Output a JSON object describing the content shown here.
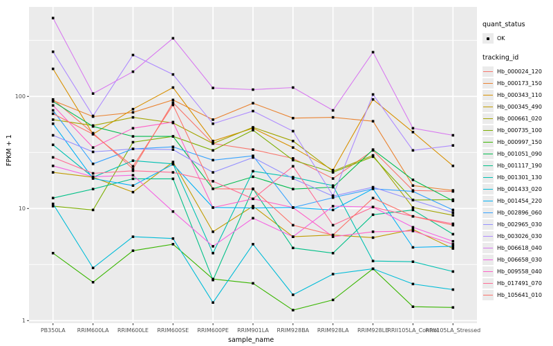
{
  "chart_data": {
    "type": "line",
    "title": "",
    "xlabel": "sample_name",
    "ylabel": "FPKM + 1",
    "y_scale": "log10",
    "y_ticks": [
      1,
      10,
      100
    ],
    "y_minor": [
      3.162,
      31.62,
      316.2
    ],
    "ylim": [
      1,
      630
    ],
    "grid": "on",
    "panel_color": "#ebebeb",
    "grid_color": "#ffffff",
    "tick_text_color": "#4d4d4d",
    "point_color": "#000000",
    "legend_position": "right",
    "legend": {
      "quant_title": "quant_status",
      "quant_value": "OK",
      "tracking_title": "tracking_id"
    },
    "categories": [
      "PB350LA",
      "RRIM600LA",
      "RRIM600LE",
      "RRIM600SE",
      "RRIM600PE",
      "RRIM901LA",
      "RRIM928BA",
      "RRIM928LA",
      "RRIM928LE",
      "RRII105LA_Control",
      "RRII105LA_Stressed"
    ],
    "series": [
      {
        "name": "Hb_000024_120",
        "color": "#F8766D",
        "values": [
          94,
          47,
          22.5,
          88,
          38,
          33.5,
          28,
          18.5,
          33,
          14.5,
          14.2
        ]
      },
      {
        "name": "Hb_000173_150",
        "color": "#EA8331",
        "values": [
          92,
          66,
          72,
          93,
          62,
          87,
          64,
          65,
          60,
          16,
          14.5
        ]
      },
      {
        "name": "Hb_000343_110",
        "color": "#D89000",
        "values": [
          176,
          46,
          77,
          120,
          40,
          52,
          35,
          22,
          94,
          48,
          24
        ]
      },
      {
        "name": "Hb_000345_490",
        "color": "#C09B00",
        "values": [
          21,
          19,
          14,
          26,
          6.2,
          10.5,
          5.6,
          5.8,
          5.5,
          6.5,
          4.4
        ]
      },
      {
        "name": "Hb_000661_020",
        "color": "#A3A500",
        "values": [
          62,
          55,
          65,
          58,
          38,
          53,
          40,
          21.5,
          29.8,
          10.2,
          8.7
        ]
      },
      {
        "name": "Hb_000735_100",
        "color": "#7CAE00",
        "values": [
          10.5,
          9.7,
          39,
          44,
          33,
          50,
          27,
          21,
          29,
          11.9,
          12
        ]
      },
      {
        "name": "Hb_000997_150",
        "color": "#39B600",
        "values": [
          4.0,
          2.2,
          4.2,
          4.8,
          2.35,
          2.15,
          1.24,
          1.53,
          2.9,
          1.33,
          1.31
        ]
      },
      {
        "name": "Hb_001051_090",
        "color": "#00BB4E",
        "values": [
          90,
          54,
          44,
          44,
          15,
          19.2,
          14.9,
          15.5,
          33.5,
          18,
          11.7
        ]
      },
      {
        "name": "Hb_001117_190",
        "color": "#00C087",
        "values": [
          12.4,
          14.9,
          18.4,
          18.4,
          2.3,
          15,
          4.45,
          4.0,
          8.8,
          9.7,
          5.9
        ]
      },
      {
        "name": "Hb_001301_130",
        "color": "#00C0B2",
        "values": [
          37,
          19,
          26.7,
          25,
          4.0,
          21.5,
          19,
          16,
          3.4,
          3.35,
          2.74
        ]
      },
      {
        "name": "Hb_001433_020",
        "color": "#00BCD8",
        "values": [
          11,
          2.95,
          5.6,
          5.4,
          1.45,
          4.8,
          1.7,
          2.6,
          2.9,
          2.12,
          1.89
        ]
      },
      {
        "name": "Hb_001454_220",
        "color": "#00B0F6",
        "values": [
          57,
          18.5,
          16,
          24.8,
          10.2,
          10.1,
          10.2,
          9.7,
          15,
          4.5,
          4.6
        ]
      },
      {
        "name": "Hb_002896_060",
        "color": "#35A2FF",
        "values": [
          75,
          25,
          34,
          35.5,
          27,
          29.5,
          10.2,
          12.5,
          15,
          14.2,
          9.7
        ]
      },
      {
        "name": "Hb_002965_030",
        "color": "#9590FF",
        "values": [
          45,
          32,
          34,
          33.5,
          21,
          28.5,
          18.5,
          12.9,
          15.5,
          11.9,
          9.2
        ]
      },
      {
        "name": "Hb_003026_030",
        "color": "#AE8BFF",
        "values": [
          250,
          67,
          234,
          157,
          57,
          74,
          49,
          13,
          104,
          33,
          36.5
        ]
      },
      {
        "name": "Hb_006618_040",
        "color": "#D878F0",
        "values": [
          500,
          106,
          166,
          330,
          119,
          115,
          120,
          75,
          248,
          52,
          45
        ]
      },
      {
        "name": "Hb_006658_030",
        "color": "#F564E3",
        "values": [
          24,
          19.2,
          19.8,
          9.4,
          4.6,
          8.2,
          5.6,
          10.5,
          10.3,
          6.8,
          5.1
        ]
      },
      {
        "name": "Hb_009558_040",
        "color": "#FF61C7",
        "values": [
          83,
          35,
          52,
          59,
          10.2,
          12.2,
          10.2,
          5.6,
          6.2,
          6.3,
          4.8
        ]
      },
      {
        "name": "Hb_017491_070",
        "color": "#FF6B94",
        "values": [
          28.6,
          20.6,
          21.7,
          21,
          17.5,
          12.2,
          23.8,
          7.1,
          10.3,
          8.5,
          7.3
        ]
      },
      {
        "name": "Hb_105641_010",
        "color": "#FC7169",
        "values": [
          70,
          46,
          23.8,
          84,
          15,
          14.9,
          7.1,
          5.8,
          12.4,
          8.5,
          7.1
        ]
      }
    ]
  }
}
